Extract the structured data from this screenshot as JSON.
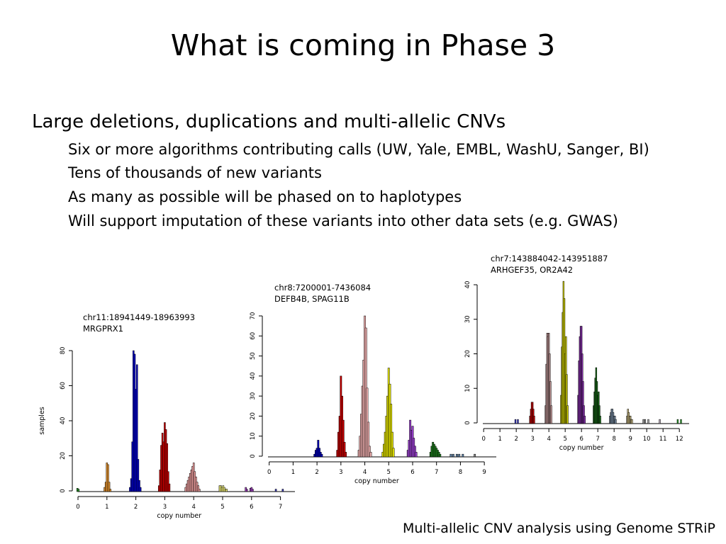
{
  "slide": {
    "title": "What is coming in Phase 3",
    "bullet_main": "Large deletions, duplications and multi-allelic CNVs",
    "sub_bullets": [
      "Six or more algorithms contributing calls (UW, Yale, EMBL, WashU, Sanger, BI)",
      "Tens of thousands of new variants",
      "As many as possible will be phased on to haplotypes",
      "Will support imputation of these variants into other data sets (e.g. GWAS)"
    ],
    "caption": "Multi-allelic CNV analysis using Genome STRiP"
  },
  "chart_data": [
    {
      "type": "bar",
      "region": "chr11:18941449-18963993",
      "genes": "MRGPRX1",
      "xlabel": "copy number",
      "ylabel": "samples",
      "xlim": [
        0,
        7.5
      ],
      "xticks": [
        0,
        1,
        2,
        3,
        4,
        5,
        6,
        7
      ],
      "ylim": [
        0,
        80
      ],
      "yticks": [
        0,
        20,
        40,
        60,
        80
      ],
      "bin_width": 0.05,
      "series": [
        {
          "copy_number": 0,
          "color": "#2e9e2e",
          "bins": [
            [
              -0.02,
              1.5
            ],
            [
              0.02,
              1
            ]
          ]
        },
        {
          "copy_number": 1,
          "color": "#e8952f",
          "bins": [
            [
              0.92,
              2
            ],
            [
              0.96,
              5
            ],
            [
              1.0,
              16
            ],
            [
              1.04,
              15
            ],
            [
              1.08,
              5
            ],
            [
              1.12,
              1
            ]
          ]
        },
        {
          "copy_number": 2,
          "color": "#0000cc",
          "bins": [
            [
              1.8,
              2
            ],
            [
              1.84,
              7
            ],
            [
              1.88,
              28
            ],
            [
              1.92,
              80
            ],
            [
              1.96,
              78
            ],
            [
              2.0,
              58
            ],
            [
              2.04,
              72
            ],
            [
              2.08,
              18
            ],
            [
              2.12,
              6
            ],
            [
              2.16,
              2
            ]
          ]
        },
        {
          "copy_number": 3,
          "color": "#cc0000",
          "bins": [
            [
              2.8,
              3
            ],
            [
              2.84,
              12
            ],
            [
              2.88,
              26
            ],
            [
              2.92,
              33
            ],
            [
              2.96,
              28
            ],
            [
              3.0,
              39
            ],
            [
              3.04,
              35
            ],
            [
              3.08,
              27
            ],
            [
              3.12,
              11
            ],
            [
              3.16,
              4
            ]
          ]
        },
        {
          "copy_number": 4,
          "color": "#f0a0a0",
          "bins": [
            [
              3.72,
              2
            ],
            [
              3.76,
              4
            ],
            [
              3.8,
              6
            ],
            [
              3.84,
              8
            ],
            [
              3.88,
              10
            ],
            [
              3.92,
              12
            ],
            [
              3.96,
              14
            ],
            [
              4.0,
              16
            ],
            [
              4.04,
              11
            ],
            [
              4.08,
              8
            ],
            [
              4.12,
              5
            ],
            [
              4.16,
              3
            ],
            [
              4.2,
              1
            ]
          ]
        },
        {
          "copy_number": 5,
          "color": "#f2f07a",
          "bins": [
            [
              4.9,
              3
            ],
            [
              4.94,
              3
            ],
            [
              4.98,
              2
            ],
            [
              5.02,
              3
            ],
            [
              5.06,
              2
            ],
            [
              5.1,
              1
            ],
            [
              5.14,
              1
            ]
          ]
        },
        {
          "copy_number": 6,
          "color": "#a040c0",
          "bins": [
            [
              5.8,
              2
            ],
            [
              5.84,
              1
            ],
            [
              5.96,
              1.5
            ],
            [
              6.0,
              2
            ],
            [
              6.04,
              1
            ]
          ]
        },
        {
          "copy_number": 7,
          "color": "#3c3cbc",
          "bins": [
            [
              6.84,
              1
            ],
            [
              7.08,
              1
            ]
          ]
        }
      ]
    },
    {
      "type": "bar",
      "region": "chr8:7200001-7436084",
      "genes": "DEFB4B, SPAG11B",
      "xlabel": "copy number",
      "ylabel": "",
      "xlim": [
        -0.05,
        9.5
      ],
      "xticks": [
        0,
        1,
        2,
        3,
        4,
        5,
        6,
        7,
        8,
        9
      ],
      "ylim": [
        0,
        70
      ],
      "yticks": [
        0,
        10,
        20,
        30,
        40,
        50,
        60,
        70
      ],
      "bin_width": 0.07,
      "series": [
        {
          "copy_number": 2,
          "color": "#0000bb",
          "bins": [
            [
              1.9,
              1
            ],
            [
              1.95,
              3
            ],
            [
              2.0,
              4
            ],
            [
              2.05,
              8
            ],
            [
              2.1,
              4
            ],
            [
              2.15,
              2
            ],
            [
              2.2,
              1
            ]
          ]
        },
        {
          "copy_number": 3,
          "color": "#cc0000",
          "bins": [
            [
              2.85,
              3
            ],
            [
              2.9,
              12
            ],
            [
              2.95,
              20
            ],
            [
              3.0,
              40
            ],
            [
              3.05,
              30
            ],
            [
              3.1,
              18
            ],
            [
              3.15,
              7
            ],
            [
              3.2,
              2
            ]
          ]
        },
        {
          "copy_number": 4,
          "color": "#f0b0b0",
          "bins": [
            [
              3.75,
              3
            ],
            [
              3.8,
              10
            ],
            [
              3.85,
              21
            ],
            [
              3.9,
              35
            ],
            [
              3.95,
              48
            ],
            [
              4.0,
              70
            ],
            [
              4.05,
              64
            ],
            [
              4.1,
              34
            ],
            [
              4.15,
              17
            ],
            [
              4.2,
              5
            ],
            [
              4.25,
              2
            ]
          ]
        },
        {
          "copy_number": 5,
          "color": "#e8e800",
          "bins": [
            [
              4.75,
              2
            ],
            [
              4.8,
              6
            ],
            [
              4.85,
              12
            ],
            [
              4.9,
              20
            ],
            [
              4.95,
              30
            ],
            [
              5.0,
              44
            ],
            [
              5.05,
              36
            ],
            [
              5.1,
              26
            ],
            [
              5.15,
              12
            ],
            [
              5.2,
              4
            ]
          ]
        },
        {
          "copy_number": 6,
          "color": "#9a40d0",
          "bins": [
            [
              5.8,
              3
            ],
            [
              5.85,
              8
            ],
            [
              5.9,
              18
            ],
            [
              5.95,
              13
            ],
            [
              6.0,
              15
            ],
            [
              6.05,
              9
            ],
            [
              6.1,
              5
            ],
            [
              6.15,
              2
            ]
          ]
        },
        {
          "copy_number": 7,
          "color": "#1e7b1e",
          "bins": [
            [
              6.75,
              2
            ],
            [
              6.8,
              5
            ],
            [
              6.85,
              7
            ],
            [
              6.9,
              6
            ],
            [
              6.95,
              5
            ],
            [
              7.0,
              4
            ],
            [
              7.05,
              3
            ],
            [
              7.1,
              2
            ],
            [
              7.15,
              1
            ]
          ]
        },
        {
          "copy_number": 8,
          "color": "#5a7fa6",
          "bins": [
            [
              7.6,
              1
            ],
            [
              7.7,
              1
            ],
            [
              7.85,
              1
            ],
            [
              7.95,
              1
            ],
            [
              8.1,
              1
            ]
          ]
        },
        {
          "copy_number": 9,
          "color": "#888888",
          "bins": [
            [
              8.6,
              1
            ]
          ]
        }
      ]
    },
    {
      "type": "bar",
      "region": "chr7:143884042-143951887",
      "genes": "ARHGEF35, OR2A42",
      "xlabel": "copy number",
      "ylabel": "",
      "xlim": [
        -0.05,
        12.6
      ],
      "xticks": [
        0,
        1,
        2,
        3,
        4,
        5,
        6,
        7,
        8,
        9,
        10,
        11,
        12
      ],
      "ylim": [
        0,
        40
      ],
      "yticks": [
        0,
        10,
        20,
        30,
        40
      ],
      "bin_width": 0.08,
      "series": [
        {
          "copy_number": 2,
          "color": "#3333cc",
          "bins": [
            [
              1.95,
              1
            ],
            [
              2.1,
              1
            ]
          ]
        },
        {
          "copy_number": 3,
          "color": "#cc0000",
          "bins": [
            [
              2.85,
              2
            ],
            [
              2.9,
              4
            ],
            [
              2.95,
              6
            ],
            [
              3.0,
              6
            ],
            [
              3.05,
              4
            ],
            [
              3.1,
              2
            ]
          ]
        },
        {
          "copy_number": 4,
          "color": "#c49a9a",
          "bins": [
            [
              3.8,
              5
            ],
            [
              3.85,
              17
            ],
            [
              3.9,
              26
            ],
            [
              3.95,
              25
            ],
            [
              4.0,
              26
            ],
            [
              4.05,
              20
            ],
            [
              4.1,
              12
            ],
            [
              4.15,
              5
            ]
          ]
        },
        {
          "copy_number": 5,
          "color": "#d8d800",
          "bins": [
            [
              4.75,
              8
            ],
            [
              4.8,
              22
            ],
            [
              4.85,
              32
            ],
            [
              4.9,
              41
            ],
            [
              4.95,
              36
            ],
            [
              5.0,
              20
            ],
            [
              5.05,
              25
            ],
            [
              5.1,
              14
            ],
            [
              5.15,
              5
            ]
          ]
        },
        {
          "copy_number": 6,
          "color": "#8a30b0",
          "bins": [
            [
              5.8,
              8
            ],
            [
              5.85,
              18
            ],
            [
              5.9,
              25
            ],
            [
              5.95,
              28
            ],
            [
              6.0,
              28
            ],
            [
              6.05,
              20
            ],
            [
              6.1,
              12
            ],
            [
              6.15,
              5
            ],
            [
              6.2,
              2
            ]
          ]
        },
        {
          "copy_number": 7,
          "color": "#1a6a1a",
          "bins": [
            [
              6.75,
              5
            ],
            [
              6.8,
              9
            ],
            [
              6.85,
              13
            ],
            [
              6.9,
              16
            ],
            [
              6.95,
              12
            ],
            [
              7.0,
              8
            ],
            [
              7.05,
              9
            ],
            [
              7.1,
              5
            ],
            [
              7.15,
              2
            ]
          ]
        },
        {
          "copy_number": 8,
          "color": "#7f95ad",
          "bins": [
            [
              7.75,
              2
            ],
            [
              7.8,
              3
            ],
            [
              7.85,
              4
            ],
            [
              7.9,
              4
            ],
            [
              7.95,
              3
            ],
            [
              8.0,
              2
            ],
            [
              8.05,
              2
            ],
            [
              8.1,
              1
            ]
          ]
        },
        {
          "copy_number": 9,
          "color": "#c8b880",
          "bins": [
            [
              8.8,
              2
            ],
            [
              8.85,
              4
            ],
            [
              8.9,
              3
            ],
            [
              8.95,
              2
            ],
            [
              9.0,
              2
            ],
            [
              9.05,
              1
            ],
            [
              9.1,
              1
            ]
          ]
        },
        {
          "copy_number": 10,
          "color": "#a0a0a0",
          "bins": [
            [
              9.8,
              1
            ],
            [
              9.9,
              1
            ],
            [
              10.1,
              1
            ]
          ]
        },
        {
          "copy_number": 11,
          "color": "#b0a0b0",
          "bins": [
            [
              10.8,
              1
            ]
          ]
        },
        {
          "copy_number": 12,
          "color": "#2aa02a",
          "bins": [
            [
              11.9,
              1
            ],
            [
              12.1,
              1
            ]
          ]
        }
      ]
    }
  ]
}
